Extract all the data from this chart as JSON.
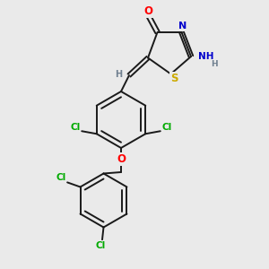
{
  "background_color": "#eaeaea",
  "bond_color": "#1a1a1a",
  "atom_colors": {
    "O": "#ff0000",
    "N": "#0000cc",
    "S": "#ccaa00",
    "Cl": "#00aa00",
    "H": "#708090",
    "C": "#1a1a1a"
  }
}
